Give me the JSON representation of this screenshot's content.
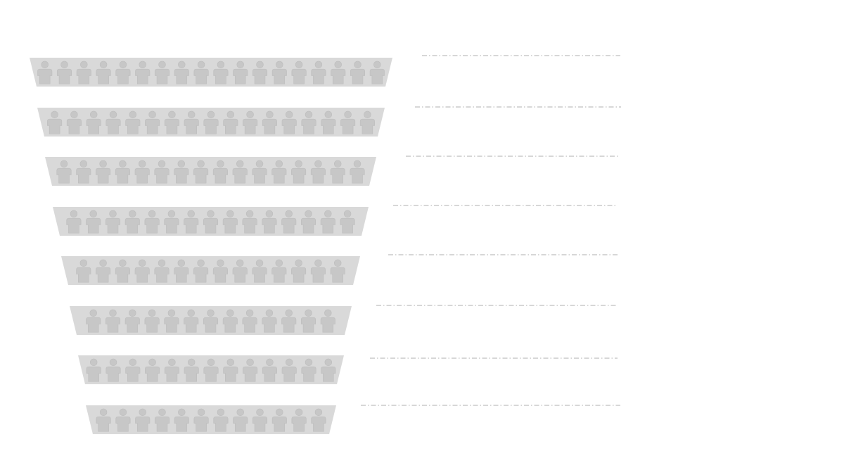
{
  "colors": {
    "background": "#ffffff",
    "band_fill": "#d9d9d9",
    "person_fill": "#c7c7c7",
    "person_stroke": "#bdbdbd",
    "connector_line": "#bfbfbf"
  },
  "icon": "person-icon",
  "connector_style": "dash-dot",
  "funnel": {
    "stages": [
      {
        "people_count": 18
      },
      {
        "people_count": 17
      },
      {
        "people_count": 16
      },
      {
        "people_count": 15
      },
      {
        "people_count": 14
      },
      {
        "people_count": 13
      },
      {
        "people_count": 13
      },
      {
        "people_count": 12
      }
    ]
  }
}
